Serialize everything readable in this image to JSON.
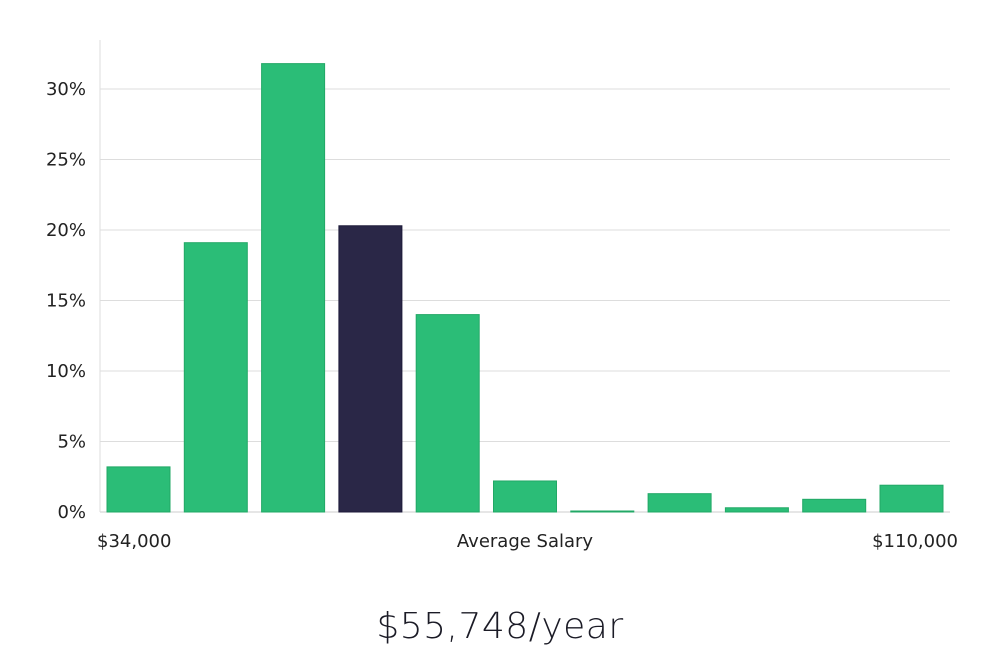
{
  "chart_data": {
    "type": "bar",
    "title": "",
    "xlabel": "Average Salary",
    "ylabel": "",
    "x_range_labels": {
      "min": "$34,000",
      "max": "$110,000"
    },
    "yticks": [
      "0%",
      "5%",
      "10%",
      "15%",
      "20%",
      "25%",
      "30%"
    ],
    "ylim": [
      0,
      33.5
    ],
    "values": [
      3.2,
      19.1,
      31.8,
      20.3,
      14.0,
      2.2,
      0.05,
      1.3,
      0.3,
      0.9,
      1.9
    ],
    "highlight_index": 3,
    "colors": {
      "bar": "#2bbd77",
      "highlight": "#2a2747",
      "grid": "#dddddd",
      "axis": "#cccccc"
    }
  },
  "summary": {
    "salary_text": "$55,748/year"
  }
}
